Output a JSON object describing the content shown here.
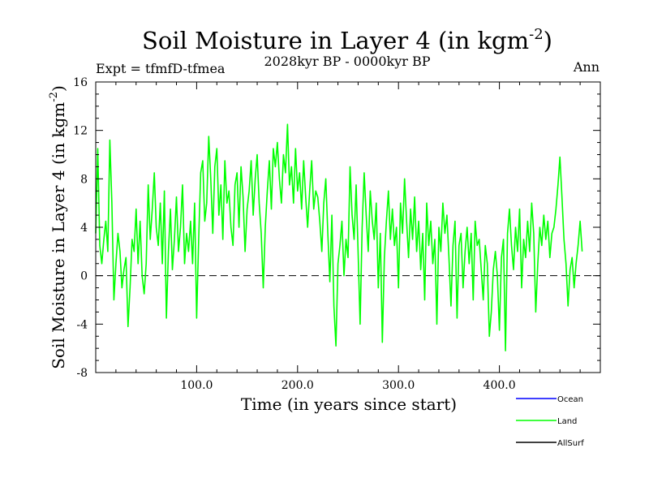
{
  "chart_data": {
    "type": "line",
    "title": "Soil Moisture in Layer 4 (in kgm",
    "title_sup": "-2",
    "title_tail": ")",
    "subtitle": "2028kyr BP - 0000kyr BP",
    "left_note": "Expt = tfmfD-tfmea",
    "right_note": "Ann",
    "xlabel": "Time (in years since start)",
    "ylabel": "Soil Moisture in Layer 4 (in kgm",
    "ylabel_sup": "-2",
    "ylabel_tail": ")",
    "xlim": [
      0,
      500
    ],
    "ylim": [
      -8,
      16
    ],
    "x_ticks": [
      100,
      200,
      300,
      400
    ],
    "x_tick_labels": [
      "100.0",
      "200.0",
      "300.0",
      "400.0"
    ],
    "y_ticks": [
      -8,
      -4,
      0,
      4,
      8,
      12,
      16
    ],
    "y_tick_labels": [
      "-8",
      "-4",
      "0",
      "4",
      "8",
      "12",
      "16"
    ],
    "zero_line": 0,
    "legend": [
      {
        "name": "Ocean",
        "color": "#0000ff"
      },
      {
        "name": "Land",
        "color": "#00ff00"
      },
      {
        "name": "AllSurf",
        "color": "#000000"
      }
    ],
    "series": [
      {
        "name": "Land",
        "color": "#00ff00",
        "x_start": 0,
        "x_step": 2,
        "values": [
          3.5,
          10.5,
          2.5,
          1.0,
          3.0,
          4.5,
          2.0,
          11.2,
          6.0,
          -2.0,
          1.0,
          3.5,
          2.0,
          -1.0,
          0.5,
          1.5,
          -4.2,
          -1.0,
          3.0,
          2.0,
          5.5,
          1.0,
          4.5,
          0.0,
          -1.5,
          1.0,
          7.5,
          3.0,
          5.5,
          8.5,
          4.0,
          2.5,
          6.0,
          1.0,
          7.0,
          -3.5,
          2.0,
          5.5,
          0.5,
          3.0,
          6.5,
          2.0,
          4.0,
          7.5,
          1.0,
          3.5,
          2.0,
          4.5,
          1.0,
          6.0,
          -3.5,
          3.0,
          8.5,
          9.5,
          4.5,
          6.0,
          11.5,
          8.0,
          3.5,
          9.0,
          10.5,
          5.0,
          7.5,
          3.0,
          9.5,
          6.0,
          7.0,
          4.0,
          2.5,
          7.5,
          8.5,
          4.0,
          9.0,
          6.5,
          2.0,
          5.5,
          7.0,
          9.5,
          5.0,
          8.0,
          10.0,
          6.0,
          3.5,
          -1.0,
          4.0,
          7.0,
          9.5,
          5.5,
          10.5,
          9.0,
          11.0,
          8.0,
          6.0,
          10.0,
          8.5,
          12.5,
          7.5,
          9.0,
          6.0,
          10.5,
          7.0,
          8.5,
          5.5,
          9.5,
          6.5,
          4.0,
          7.0,
          9.5,
          5.5,
          7.0,
          6.5,
          4.5,
          2.0,
          6.0,
          8.0,
          3.5,
          -0.5,
          5.0,
          -2.5,
          -5.8,
          1.0,
          2.5,
          4.5,
          0.0,
          3.0,
          1.5,
          9.0,
          5.0,
          3.0,
          7.5,
          2.0,
          -4.0,
          4.0,
          8.5,
          5.0,
          2.0,
          7.0,
          4.5,
          3.0,
          6.0,
          -1.0,
          3.5,
          -5.5,
          1.5,
          4.5,
          7.0,
          3.0,
          5.5,
          2.5,
          4.0,
          -1.0,
          6.0,
          3.5,
          8.0,
          4.5,
          1.5,
          5.5,
          3.0,
          6.5,
          2.0,
          4.5,
          0.5,
          3.5,
          -2.0,
          6.0,
          2.5,
          4.5,
          1.0,
          3.0,
          -4.0,
          4.0,
          2.0,
          6.0,
          3.5,
          5.0,
          1.5,
          -2.5,
          2.5,
          4.5,
          -3.5,
          2.5,
          3.5,
          -1.0,
          2.0,
          4.0,
          1.0,
          3.5,
          -2.0,
          4.5,
          2.5,
          3.0,
          0.5,
          -2.0,
          2.5,
          1.0,
          -5.0,
          -3.0,
          0.5,
          2.0,
          0.0,
          -4.5,
          1.5,
          3.0,
          -6.2,
          3.5,
          5.5,
          2.5,
          0.5,
          4.0,
          2.0,
          5.5,
          -1.0,
          3.0,
          1.5,
          4.5,
          2.0,
          6.0,
          3.5,
          -3.0,
          1.0,
          4.0,
          2.5,
          5.0,
          3.0,
          4.5,
          1.5,
          3.5,
          4.0,
          5.5,
          7.5,
          9.8,
          6.5,
          3.0,
          1.0,
          -2.5,
          0.5,
          1.5,
          -1.0,
          1.0,
          2.5,
          4.5,
          2.0
        ]
      }
    ]
  }
}
